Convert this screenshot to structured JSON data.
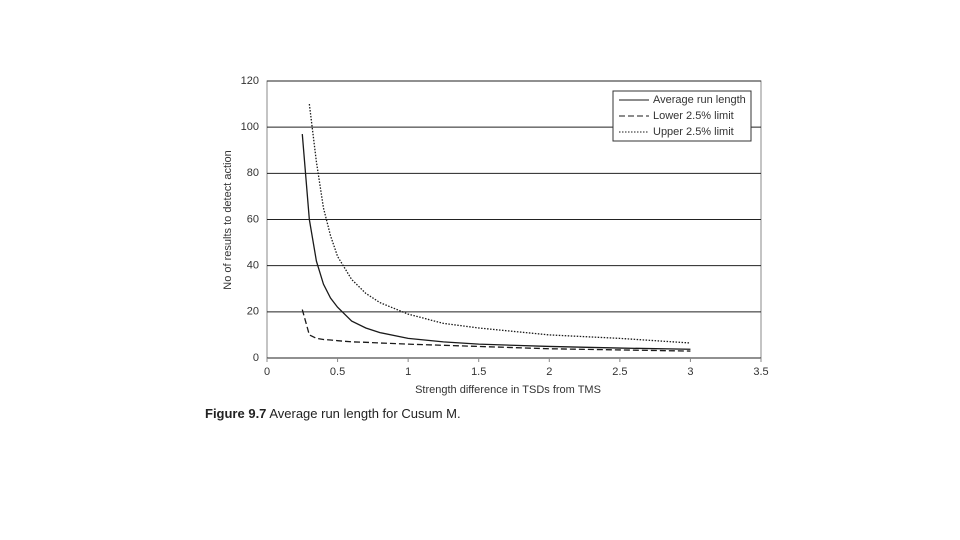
{
  "chart_data": {
    "type": "line",
    "xlabel": "Strength difference in TSDs from TMS",
    "ylabel": "No of results to detect action",
    "figure_label": "Figure 9.7",
    "caption": "Average run length for Cusum M.",
    "x": [
      0.25,
      0.3,
      0.35,
      0.4,
      0.45,
      0.5,
      0.6,
      0.7,
      0.8,
      1,
      1.25,
      1.5,
      2,
      2.5,
      3
    ],
    "series": [
      {
        "name": "Average run length",
        "color": "#1a1a1a",
        "style": "solid",
        "values": [
          97,
          60,
          42,
          32,
          26,
          22,
          16,
          13,
          11,
          8.5,
          7,
          6,
          5,
          4.3,
          3.8
        ]
      },
      {
        "name": "Lower 2.5% limit",
        "color": "#1a1a1a",
        "style": "dashed",
        "values": [
          21,
          10,
          8.5,
          8,
          7.8,
          7.5,
          7,
          6.8,
          6.5,
          6,
          5.5,
          5,
          4,
          3.5,
          3
        ]
      },
      {
        "name": "Upper 2.5% limit",
        "color": "#1a1a1a",
        "style": "dotted",
        "values": [
          null,
          110,
          85,
          65,
          53,
          44,
          34,
          28,
          24,
          19,
          15,
          13,
          10,
          8.5,
          6.5
        ]
      }
    ],
    "xlim": [
      0,
      3.5
    ],
    "xticks": [
      0,
      0.5,
      1,
      1.5,
      2,
      2.5,
      3,
      3.5
    ],
    "ylim": [
      0,
      120
    ],
    "yticks": [
      0,
      20,
      40,
      60,
      80,
      100,
      120
    ],
    "grid": true,
    "legend": "top-right"
  }
}
